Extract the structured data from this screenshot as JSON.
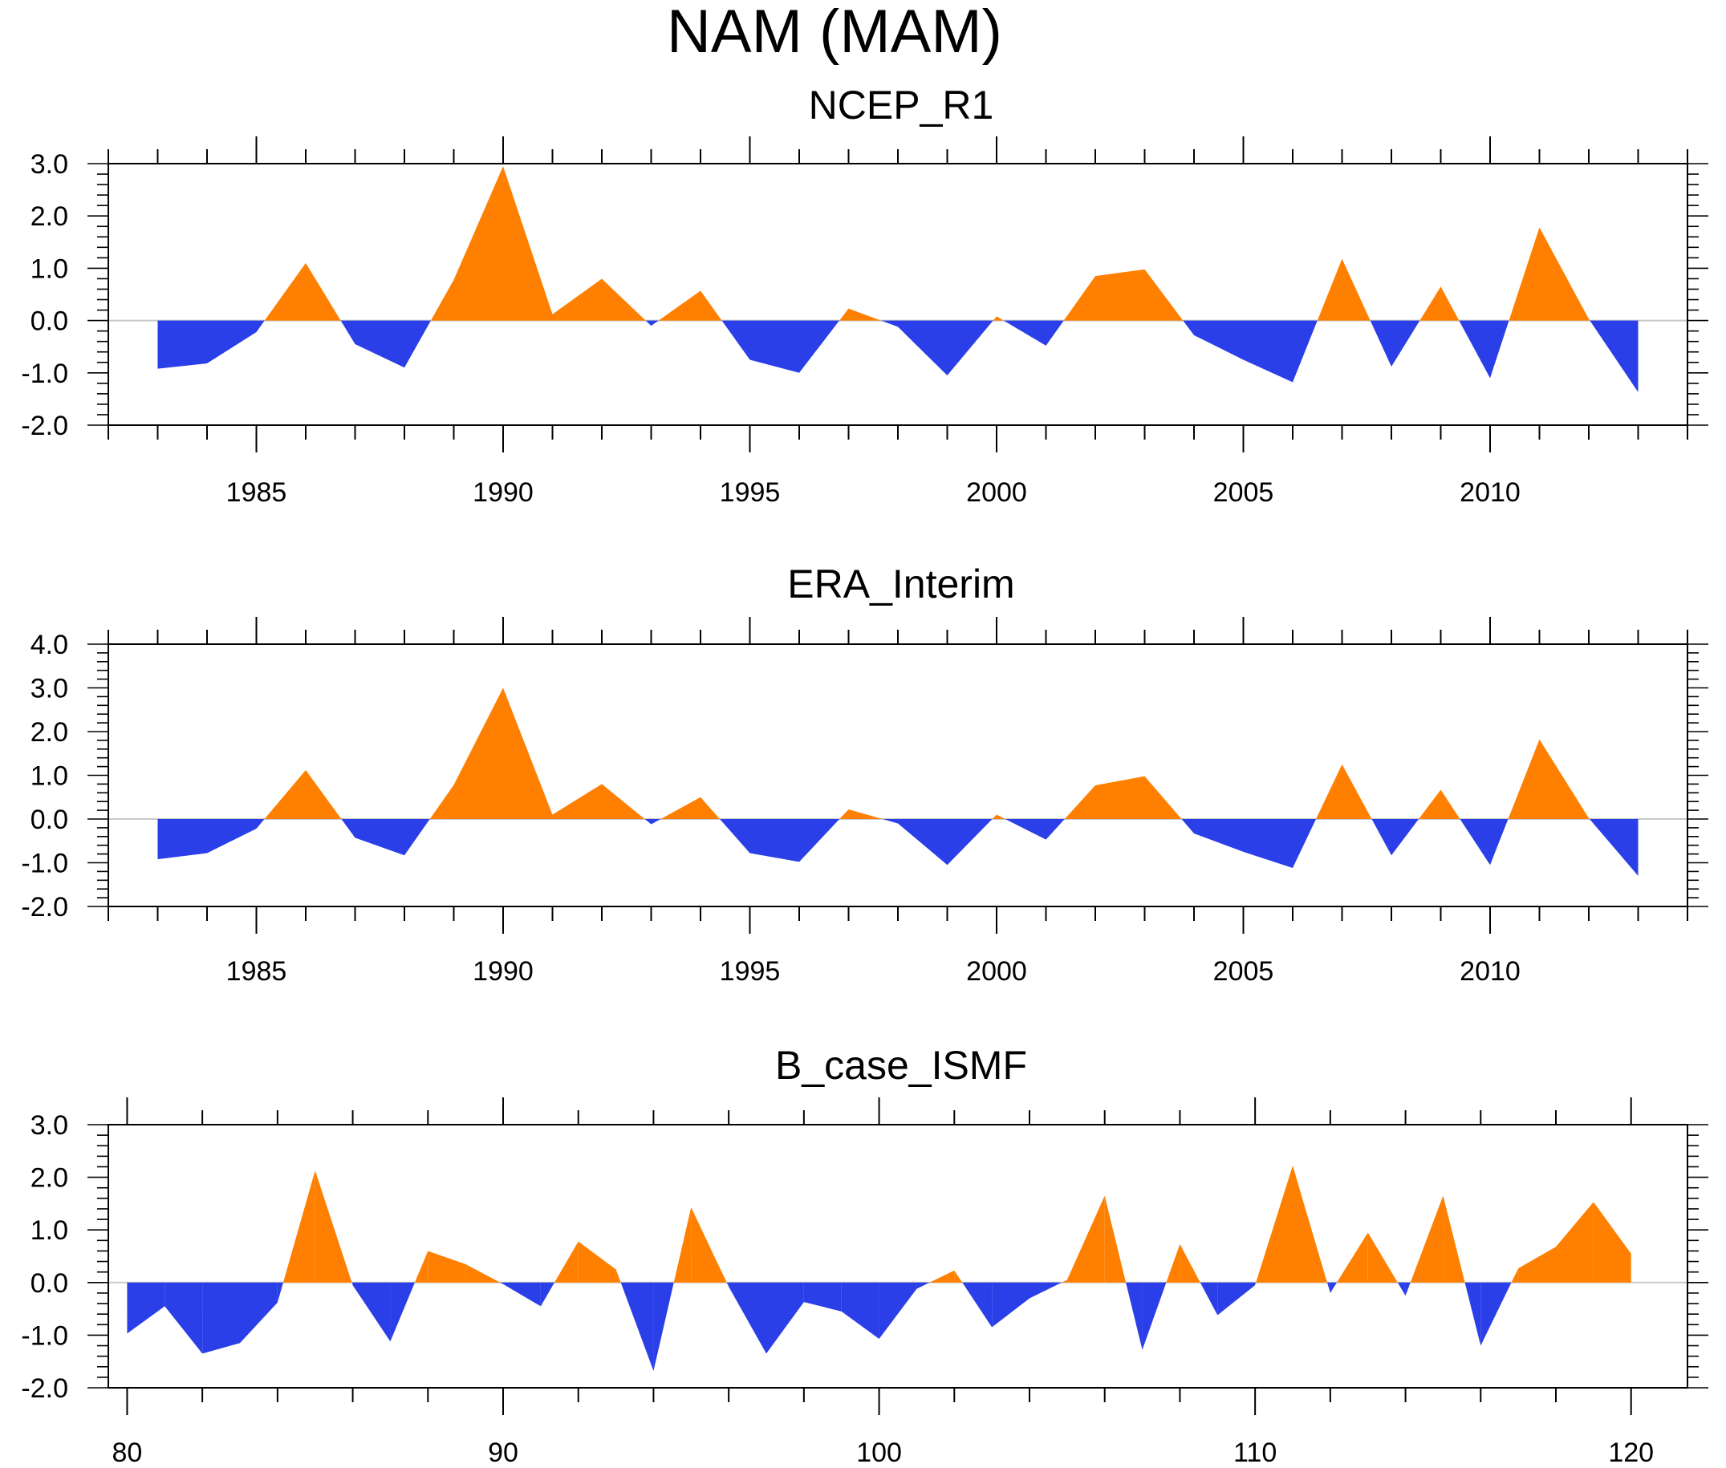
{
  "title": "NAM (MAM)",
  "colors": {
    "positive": "#FF8000",
    "negative": "#2B3FE8",
    "axis": "#000000",
    "zero_line": "#C8C8C8"
  },
  "chart_data": [
    {
      "type": "area",
      "title": "NCEP_R1",
      "xlabel": "",
      "ylabel": "",
      "xlim": [
        1982,
        2014
      ],
      "ylim": [
        -2.0,
        3.0
      ],
      "xticks": [
        1985,
        1990,
        1995,
        2000,
        2005,
        2010
      ],
      "xtick_labels": [
        "1985",
        "1990",
        "1995",
        "2000",
        "2005",
        "2010"
      ],
      "yticks": [
        -2.0,
        -1.0,
        0.0,
        1.0,
        2.0,
        3.0
      ],
      "ytick_labels": [
        "-2.0",
        "-1.0",
        "0.0",
        "1.0",
        "2.0",
        "3.0"
      ],
      "x": [
        1983,
        1984,
        1985,
        1986,
        1987,
        1988,
        1989,
        1990,
        1991,
        1992,
        1993,
        1994,
        1995,
        1996,
        1997,
        1998,
        1999,
        2000,
        2001,
        2002,
        2003,
        2004,
        2005,
        2006,
        2007,
        2008,
        2009,
        2010,
        2011,
        2012,
        2013
      ],
      "values": [
        -0.92,
        -0.82,
        -0.22,
        1.1,
        -0.45,
        -0.9,
        0.78,
        2.95,
        0.12,
        0.8,
        -0.1,
        0.57,
        -0.75,
        -1.0,
        0.23,
        -0.12,
        -1.05,
        0.08,
        -0.48,
        0.85,
        0.98,
        -0.28,
        -0.75,
        -1.18,
        1.18,
        -0.88,
        0.65,
        -1.1,
        1.78,
        0.03,
        -1.37
      ]
    },
    {
      "type": "area",
      "title": "ERA_Interim",
      "xlabel": "",
      "ylabel": "",
      "xlim": [
        1982,
        2014
      ],
      "ylim": [
        -2.0,
        4.0
      ],
      "xticks": [
        1985,
        1990,
        1995,
        2000,
        2005,
        2010
      ],
      "xtick_labels": [
        "1985",
        "1990",
        "1995",
        "2000",
        "2005",
        "2010"
      ],
      "yticks": [
        -2.0,
        -1.0,
        0.0,
        1.0,
        2.0,
        3.0,
        4.0
      ],
      "ytick_labels": [
        "-2.0",
        "-1.0",
        "0.0",
        "1.0",
        "2.0",
        "3.0",
        "4.0"
      ],
      "x": [
        1983,
        1984,
        1985,
        1986,
        1987,
        1988,
        1989,
        1990,
        1991,
        1992,
        1993,
        1994,
        1995,
        1996,
        1997,
        1998,
        1999,
        2000,
        2001,
        2002,
        2003,
        2004,
        2005,
        2006,
        2007,
        2008,
        2009,
        2010,
        2011,
        2012,
        2013
      ],
      "values": [
        -0.92,
        -0.78,
        -0.22,
        1.12,
        -0.43,
        -0.83,
        0.78,
        3.0,
        0.1,
        0.8,
        -0.12,
        0.5,
        -0.78,
        -0.98,
        0.22,
        -0.1,
        -1.05,
        0.1,
        -0.47,
        0.77,
        0.98,
        -0.33,
        -0.75,
        -1.12,
        1.25,
        -0.83,
        0.67,
        -1.05,
        1.82,
        0.02,
        -1.3
      ]
    },
    {
      "type": "area",
      "title": "B_case_ISMF",
      "xlabel": "",
      "ylabel": "",
      "xlim": [
        79.5,
        121.5
      ],
      "ylim": [
        -2.0,
        3.0
      ],
      "xticks": [
        80,
        90,
        100,
        110,
        120
      ],
      "xtick_labels": [
        "80",
        "90",
        "100",
        "110",
        "120"
      ],
      "yticks": [
        -2.0,
        -1.0,
        0.0,
        1.0,
        2.0,
        3.0
      ],
      "ytick_labels": [
        "-2.0",
        "-1.0",
        "0.0",
        "1.0",
        "2.0",
        "3.0"
      ],
      "x": [
        80,
        81,
        82,
        83,
        84,
        85,
        86,
        87,
        88,
        89,
        90,
        91,
        92,
        93,
        94,
        95,
        96,
        97,
        98,
        99,
        100,
        101,
        102,
        103,
        104,
        105,
        106,
        107,
        108,
        109,
        110,
        111,
        112,
        113,
        114,
        115,
        116,
        117,
        118,
        119,
        120
      ],
      "values": [
        -0.97,
        -0.45,
        -1.35,
        -1.15,
        -0.38,
        2.13,
        -0.05,
        -1.12,
        0.6,
        0.35,
        -0.03,
        -0.45,
        0.78,
        0.25,
        -1.68,
        1.43,
        -0.08,
        -1.35,
        -0.37,
        -0.55,
        -1.07,
        -0.12,
        0.23,
        -0.85,
        -0.3,
        0.05,
        1.65,
        -1.28,
        0.73,
        -0.62,
        -0.05,
        2.22,
        -0.2,
        0.95,
        -0.25,
        1.65,
        -1.2,
        0.27,
        0.68,
        1.53,
        0.55
      ]
    }
  ]
}
